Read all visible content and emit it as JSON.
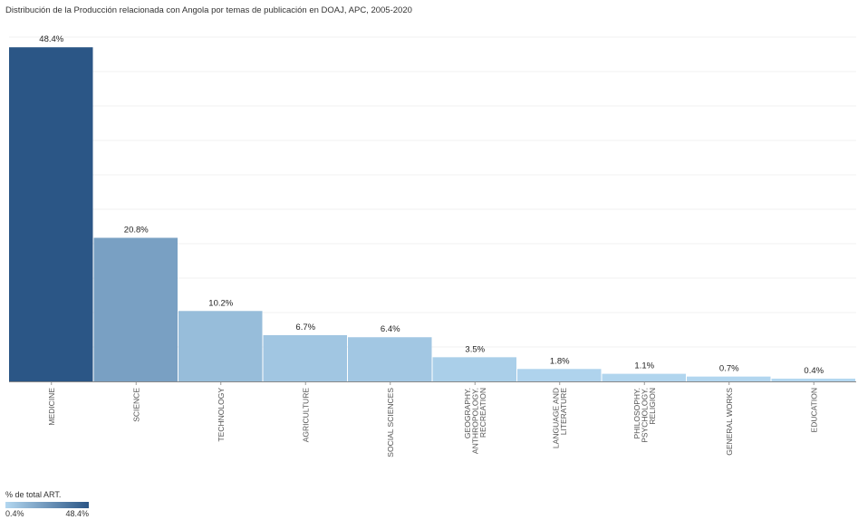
{
  "chart_data": {
    "type": "bar",
    "title": "Distribución de la Producción relacionada con Angola por temas de publicación en DOAJ, APC, 2005-2020",
    "categories": [
      [
        "MEDICINE"
      ],
      [
        "SCIENCE"
      ],
      [
        "TECHNOLOGY"
      ],
      [
        "AGRICULTURE"
      ],
      [
        "SOCIAL SCIENCES"
      ],
      [
        "GEOGRAPHY.",
        "ANTHROPOLOGY.",
        "RECREATION"
      ],
      [
        "LANGUAGE AND",
        "LITERATURE"
      ],
      [
        "PHILOSOPHY.",
        "PSYCHOLOGY.",
        "RELIGION"
      ],
      [
        "GENERAL WORKS"
      ],
      [
        "EDUCATION"
      ]
    ],
    "values": [
      48.4,
      20.8,
      10.2,
      6.7,
      6.4,
      3.5,
      1.8,
      1.1,
      0.7,
      0.4
    ],
    "value_labels": [
      "48.4%",
      "20.8%",
      "10.2%",
      "6.7%",
      "6.4%",
      "3.5%",
      "1.8%",
      "1.1%",
      "0.7%",
      "0.4%"
    ],
    "ylim": [
      0,
      50
    ],
    "grid": true,
    "color_scale": {
      "low": "#b3d7f0",
      "high": "#2b5686",
      "min": 0.4,
      "max": 48.4
    },
    "legend": {
      "title": "% de total ART.",
      "min_label": "0.4%",
      "max_label": "48.4%",
      "placement": "bottom-left"
    }
  }
}
